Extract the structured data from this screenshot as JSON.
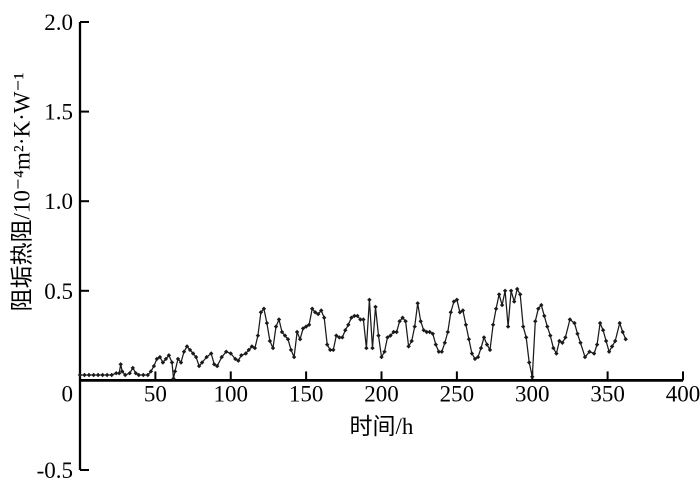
{
  "figure": {
    "background": "#ffffff",
    "axis_color": "#000000",
    "text_color": "#000000"
  },
  "chart_data": {
    "type": "line",
    "xlabel": "时间/h",
    "ylabel": "阻垢热阻/10⁻⁴m²·K·W⁻¹",
    "xlim": [
      0,
      400
    ],
    "ylim": [
      -0.5,
      2.0
    ],
    "xticks": [
      0,
      50,
      100,
      150,
      200,
      250,
      300,
      350,
      400
    ],
    "xtick_labels": [
      "0",
      "50",
      "100",
      "150",
      "200",
      "250",
      "300",
      "350",
      "400"
    ],
    "yticks": [
      -0.5,
      0,
      0.5,
      1.0,
      1.5,
      2.0
    ],
    "ytick_labels": [
      "-0.5",
      "0",
      "0.5",
      "1.0",
      "1.5",
      "2.0"
    ],
    "grid": false,
    "legend_position": "none",
    "marker": "diamond",
    "line_color": "#1a1a1a",
    "series": [
      {
        "name": "阻垢热阻",
        "points": [
          [
            0,
            0.03
          ],
          [
            3,
            0.03
          ],
          [
            6,
            0.03
          ],
          [
            9,
            0.03
          ],
          [
            12,
            0.03
          ],
          [
            15,
            0.03
          ],
          [
            18,
            0.03
          ],
          [
            21,
            0.03
          ],
          [
            24,
            0.04
          ],
          [
            26,
            0.04
          ],
          [
            27,
            0.09
          ],
          [
            28,
            0.05
          ],
          [
            30,
            0.03
          ],
          [
            33,
            0.04
          ],
          [
            35,
            0.07
          ],
          [
            37,
            0.04
          ],
          [
            39,
            0.03
          ],
          [
            42,
            0.03
          ],
          [
            45,
            0.03
          ],
          [
            47,
            0.05
          ],
          [
            49,
            0.08
          ],
          [
            51,
            0.12
          ],
          [
            53,
            0.13
          ],
          [
            55,
            0.1
          ],
          [
            57,
            0.12
          ],
          [
            59,
            0.14
          ],
          [
            61,
            0.1
          ],
          [
            62,
            0.01
          ],
          [
            63,
            0.05
          ],
          [
            65,
            0.12
          ],
          [
            67,
            0.1
          ],
          [
            69,
            0.16
          ],
          [
            71,
            0.19
          ],
          [
            73,
            0.17
          ],
          [
            75,
            0.15
          ],
          [
            77,
            0.13
          ],
          [
            79,
            0.08
          ],
          [
            81,
            0.1
          ],
          [
            84,
            0.13
          ],
          [
            87,
            0.15
          ],
          [
            89,
            0.09
          ],
          [
            91,
            0.08
          ],
          [
            94,
            0.13
          ],
          [
            97,
            0.16
          ],
          [
            100,
            0.15
          ],
          [
            103,
            0.12
          ],
          [
            105,
            0.11
          ],
          [
            107,
            0.14
          ],
          [
            110,
            0.15
          ],
          [
            112,
            0.17
          ],
          [
            114,
            0.19
          ],
          [
            116,
            0.18
          ],
          [
            118,
            0.25
          ],
          [
            120,
            0.38
          ],
          [
            122,
            0.4
          ],
          [
            124,
            0.32
          ],
          [
            126,
            0.22
          ],
          [
            128,
            0.18
          ],
          [
            130,
            0.3
          ],
          [
            132,
            0.34
          ],
          [
            134,
            0.27
          ],
          [
            136,
            0.25
          ],
          [
            138,
            0.23
          ],
          [
            140,
            0.17
          ],
          [
            142,
            0.13
          ],
          [
            144,
            0.27
          ],
          [
            146,
            0.23
          ],
          [
            148,
            0.29
          ],
          [
            150,
            0.3
          ],
          [
            152,
            0.31
          ],
          [
            154,
            0.4
          ],
          [
            156,
            0.38
          ],
          [
            158,
            0.37
          ],
          [
            160,
            0.39
          ],
          [
            162,
            0.35
          ],
          [
            164,
            0.2
          ],
          [
            166,
            0.17
          ],
          [
            168,
            0.17
          ],
          [
            170,
            0.25
          ],
          [
            172,
            0.24
          ],
          [
            174,
            0.24
          ],
          [
            176,
            0.28
          ],
          [
            178,
            0.31
          ],
          [
            180,
            0.35
          ],
          [
            182,
            0.36
          ],
          [
            184,
            0.36
          ],
          [
            186,
            0.34
          ],
          [
            188,
            0.34
          ],
          [
            190,
            0.18
          ],
          [
            192,
            0.45
          ],
          [
            194,
            0.18
          ],
          [
            196,
            0.41
          ],
          [
            198,
            0.25
          ],
          [
            200,
            0.13
          ],
          [
            202,
            0.16
          ],
          [
            204,
            0.24
          ],
          [
            206,
            0.25
          ],
          [
            208,
            0.27
          ],
          [
            210,
            0.27
          ],
          [
            212,
            0.33
          ],
          [
            214,
            0.35
          ],
          [
            216,
            0.33
          ],
          [
            218,
            0.19
          ],
          [
            220,
            0.22
          ],
          [
            222,
            0.3
          ],
          [
            224,
            0.43
          ],
          [
            226,
            0.33
          ],
          [
            228,
            0.28
          ],
          [
            230,
            0.27
          ],
          [
            232,
            0.27
          ],
          [
            234,
            0.26
          ],
          [
            236,
            0.2
          ],
          [
            238,
            0.16
          ],
          [
            240,
            0.16
          ],
          [
            242,
            0.21
          ],
          [
            244,
            0.27
          ],
          [
            246,
            0.38
          ],
          [
            248,
            0.44
          ],
          [
            250,
            0.45
          ],
          [
            252,
            0.38
          ],
          [
            254,
            0.39
          ],
          [
            256,
            0.31
          ],
          [
            258,
            0.23
          ],
          [
            260,
            0.15
          ],
          [
            262,
            0.12
          ],
          [
            264,
            0.13
          ],
          [
            266,
            0.18
          ],
          [
            268,
            0.24
          ],
          [
            270,
            0.2
          ],
          [
            272,
            0.17
          ],
          [
            274,
            0.31
          ],
          [
            276,
            0.4
          ],
          [
            278,
            0.48
          ],
          [
            280,
            0.42
          ],
          [
            282,
            0.5
          ],
          [
            284,
            0.3
          ],
          [
            286,
            0.5
          ],
          [
            288,
            0.44
          ],
          [
            290,
            0.51
          ],
          [
            292,
            0.48
          ],
          [
            294,
            0.3
          ],
          [
            296,
            0.24
          ],
          [
            298,
            0.1
          ],
          [
            300,
            0.02
          ],
          [
            302,
            0.33
          ],
          [
            304,
            0.4
          ],
          [
            306,
            0.42
          ],
          [
            308,
            0.36
          ],
          [
            310,
            0.3
          ],
          [
            312,
            0.25
          ],
          [
            314,
            0.18
          ],
          [
            316,
            0.15
          ],
          [
            318,
            0.22
          ],
          [
            320,
            0.21
          ],
          [
            322,
            0.24
          ],
          [
            325,
            0.34
          ],
          [
            328,
            0.32
          ],
          [
            330,
            0.26
          ],
          [
            332,
            0.21
          ],
          [
            335,
            0.13
          ],
          [
            338,
            0.16
          ],
          [
            341,
            0.15
          ],
          [
            343,
            0.2
          ],
          [
            345,
            0.32
          ],
          [
            347,
            0.28
          ],
          [
            349,
            0.22
          ],
          [
            351,
            0.16
          ],
          [
            353,
            0.19
          ],
          [
            355,
            0.22
          ],
          [
            358,
            0.32
          ],
          [
            360,
            0.27
          ],
          [
            362,
            0.23
          ]
        ]
      }
    ]
  }
}
